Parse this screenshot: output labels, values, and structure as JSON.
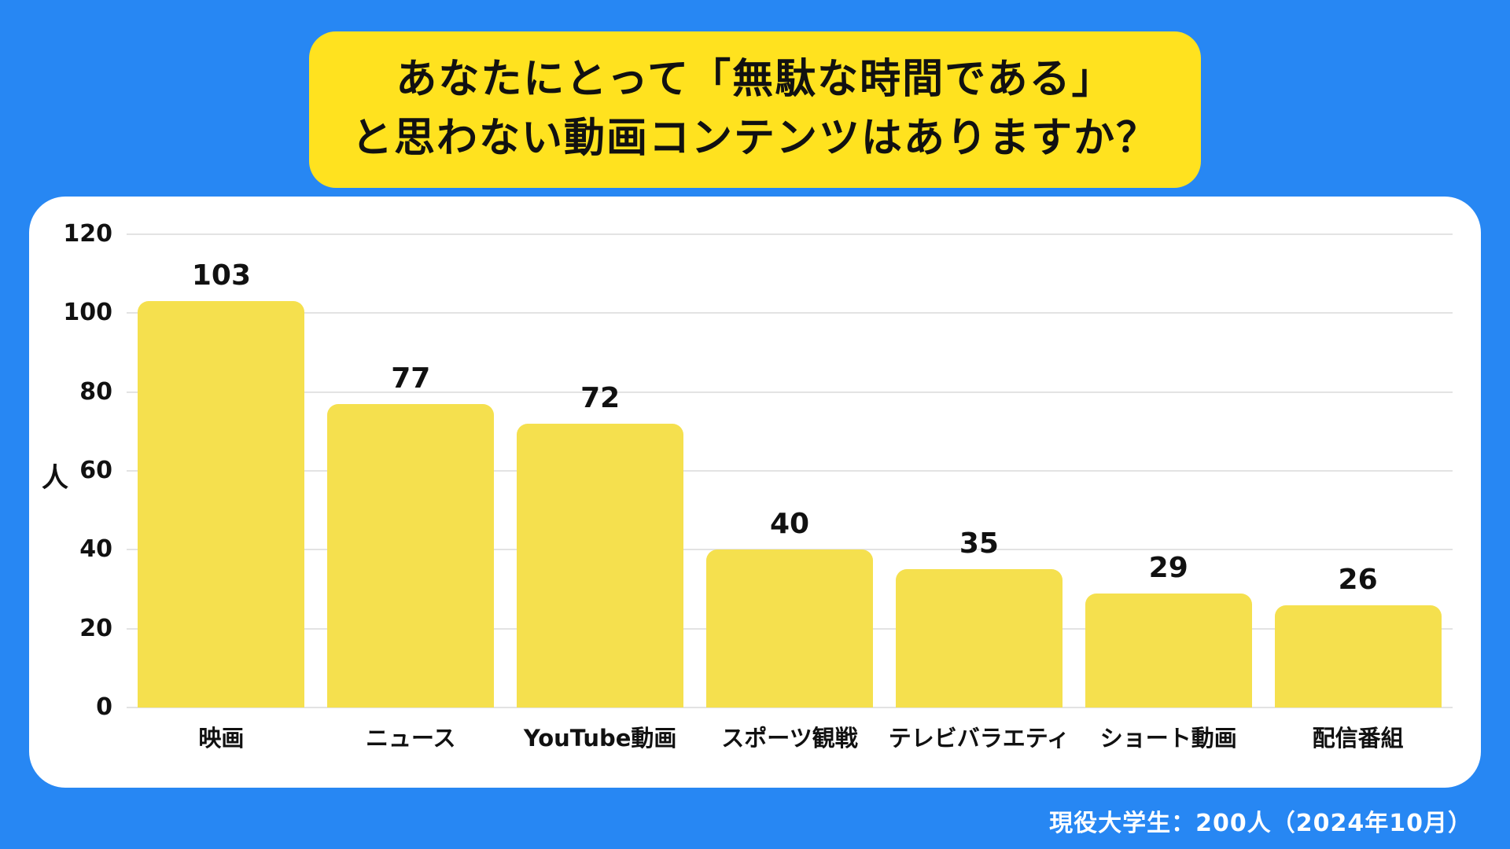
{
  "title": {
    "line1": "あなたにとって「無駄な時間である」",
    "line2": "と思わない動画コンテンツはありますか？"
  },
  "footer": {
    "note": "現役大学生：200人（2024年10月）"
  },
  "chart_data": {
    "type": "bar",
    "title": "あなたにとって「無駄な時間である」と思わない動画コンテンツはありますか？",
    "categories": [
      "映画",
      "ニュース",
      "YouTube動画",
      "スポーツ観戦",
      "テレビバラエティ",
      "ショート動画",
      "配信番組"
    ],
    "values": [
      103,
      77,
      72,
      40,
      35,
      29,
      26
    ],
    "xlabel": "",
    "ylabel": "人",
    "ylim": [
      0,
      120
    ],
    "ytick_step": 20,
    "grid": true,
    "legend": "none",
    "value_labels": true,
    "source_note": "現役大学生：200人（2024年10月）"
  },
  "colors": {
    "background": "#2787F3",
    "banner": "#FFE21F",
    "bar": "#F5E04E",
    "card": "#FFFFFF",
    "grid": "#E3E3E3",
    "text": "#111111",
    "footer_text": "#FFFFFF"
  }
}
